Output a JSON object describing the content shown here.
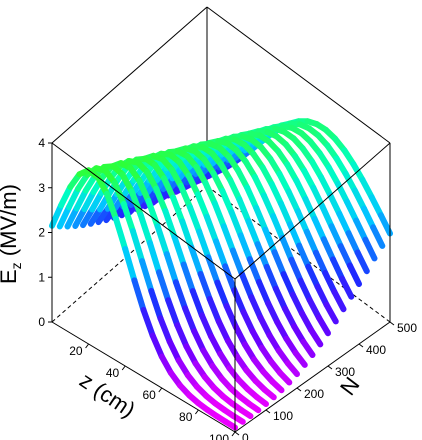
{
  "chart_data": {
    "type": "surface-3d",
    "xlabel": "z (cm)",
    "ylabel_main": "E",
    "ylabel_sub": "z",
    "ylabel_rest": " (MV/m)",
    "nlabel": "N",
    "zlim": [
      0,
      100
    ],
    "nlim": [
      0,
      500
    ],
    "elim": [
      0,
      4
    ],
    "z_ticks": [
      "20",
      "40",
      "60",
      "80",
      "100"
    ],
    "n_ticks": [
      "0",
      "100",
      "200",
      "300",
      "400",
      "500"
    ],
    "e_ticks": [
      "0",
      "1",
      "2",
      "3",
      "4"
    ],
    "z_tick_values": [
      20,
      40,
      60,
      80,
      100
    ],
    "n_tick_values": [
      0,
      100,
      200,
      300,
      400,
      500
    ],
    "e_tick_values": [
      0,
      1,
      2,
      3,
      4
    ],
    "n_curves": [
      0,
      25,
      50,
      75,
      100,
      125,
      150,
      175,
      200,
      225,
      250,
      275,
      300,
      325,
      350,
      375,
      400,
      425,
      450,
      475,
      500
    ],
    "z_samples": [
      0,
      5,
      10,
      15,
      20,
      25,
      30,
      35,
      40,
      45,
      50,
      55,
      60,
      65,
      70,
      75,
      80,
      85,
      90,
      95,
      100
    ],
    "field_peak": 3.8,
    "colormap": [
      "#ff00ff",
      "#6a00ff",
      "#1d2bff",
      "#00c8ff",
      "#00ffc0",
      "#2dff3a"
    ]
  }
}
